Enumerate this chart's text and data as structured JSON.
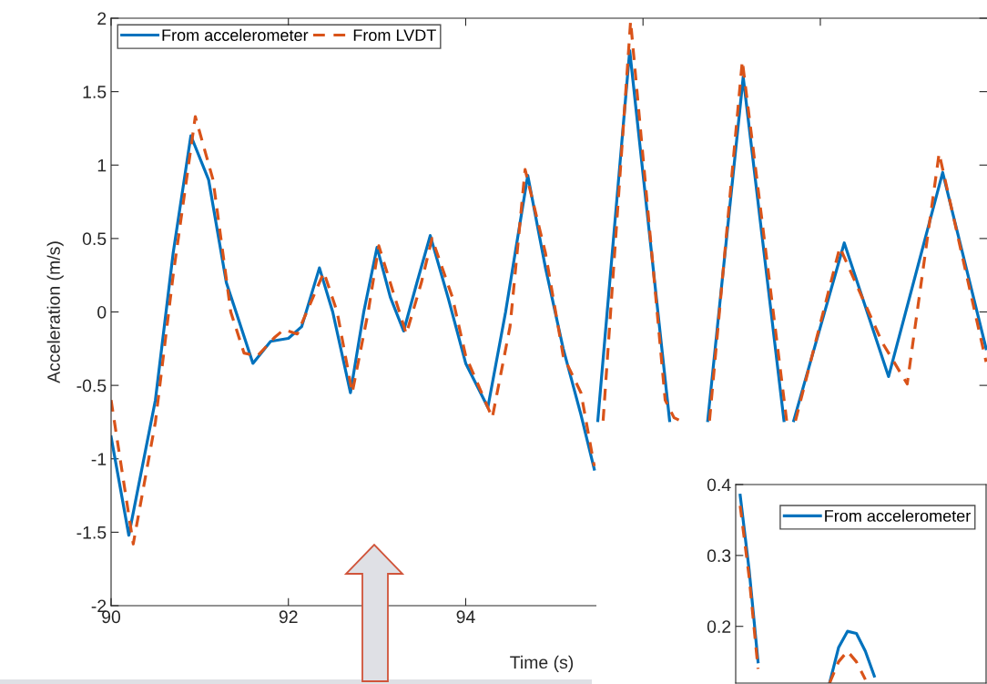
{
  "chart_data": [
    {
      "type": "line",
      "xlabel": "Time (s)",
      "ylabel": "Acceleration (m/s)",
      "xlim": [
        90,
        99.88
      ],
      "xticks": [
        90,
        92,
        94,
        {
          "value": 96,
          "label": null
        },
        {
          "value": 98,
          "label": null
        }
      ],
      "ylim": [
        -2,
        2
      ],
      "yticks": [
        -2,
        -1.5,
        -1,
        -0.5,
        0,
        0.5,
        1,
        1.5,
        2
      ],
      "legend": "top left",
      "grid": false,
      "series": [
        {
          "name": "From accelerometer",
          "color": "#0072bd",
          "line_style": "solid",
          "x": [
            90.0,
            90.2,
            90.5,
            90.7,
            90.9,
            91.1,
            91.3,
            91.6,
            91.8,
            92.0,
            92.15,
            92.35,
            92.5,
            92.7,
            92.85,
            93.0,
            93.15,
            93.3,
            93.45,
            93.6,
            93.8,
            94.0,
            94.25,
            94.45,
            94.7,
            94.9,
            95.1,
            95.3,
            95.45,
            95.47,
            95.49,
            95.85,
            96.3,
            96.5,
            96.73,
            97.13,
            97.59,
            97.65,
            97.7,
            98.27,
            98.77,
            99.38,
            99.87
          ],
          "values": [
            -0.85,
            -1.52,
            -0.6,
            0.4,
            1.2,
            0.9,
            0.2,
            -0.35,
            -0.2,
            -0.18,
            -0.1,
            0.3,
            0.0,
            -0.55,
            0.0,
            0.44,
            0.1,
            -0.13,
            0.2,
            0.52,
            0.1,
            -0.35,
            -0.65,
            0.0,
            0.93,
            0.3,
            -0.25,
            -0.7,
            -1.07,
            null,
            -0.74,
            1.78,
            -0.74,
            null,
            -0.74,
            1.6,
            -0.74,
            null,
            -0.74,
            0.47,
            -0.44,
            0.95,
            -0.25
          ]
        },
        {
          "name": "From LVDT",
          "color": "#d95319",
          "line_style": "dashed",
          "x": [
            90.0,
            90.25,
            90.5,
            90.7,
            90.95,
            91.15,
            91.35,
            91.5,
            91.65,
            91.85,
            91.95,
            92.1,
            92.4,
            92.55,
            92.72,
            92.9,
            93.02,
            93.2,
            93.33,
            93.5,
            93.62,
            93.85,
            94.0,
            94.3,
            94.5,
            94.67,
            94.9,
            95.1,
            95.3,
            95.45,
            95.52,
            95.55,
            95.86,
            96.25,
            96.35,
            96.42,
            96.5,
            96.75,
            97.12,
            97.62,
            97.66,
            97.72,
            98.22,
            98.7,
            98.98,
            99.34,
            99.87
          ],
          "values": [
            -0.6,
            -1.58,
            -0.75,
            0.25,
            1.33,
            0.9,
            0.0,
            -0.28,
            -0.3,
            -0.17,
            -0.12,
            -0.15,
            0.27,
            0.0,
            -0.55,
            0.0,
            0.45,
            0.1,
            -0.15,
            0.2,
            0.5,
            0.1,
            -0.3,
            -0.72,
            -0.1,
            0.97,
            0.4,
            -0.3,
            -0.55,
            -1.05,
            null,
            -0.74,
            1.98,
            -0.6,
            -0.72,
            -0.74,
            null,
            -0.74,
            1.71,
            -0.74,
            null,
            -0.74,
            0.44,
            -0.21,
            -0.49,
            1.08,
            -0.34
          ]
        }
      ]
    },
    {
      "type": "line",
      "categories": [
        null,
        null,
        null,
        null,
        null,
        null,
        null,
        null,
        null,
        null,
        null,
        null,
        null,
        null,
        null,
        null,
        null,
        null,
        null,
        null,
        null,
        null,
        null,
        null,
        null,
        null,
        null,
        null
      ],
      "ylim": [
        0.12,
        0.4
      ],
      "yticks": [
        0.2,
        0.3,
        0.4
      ],
      "legend": "top right",
      "grid": false,
      "series": [
        {
          "name": "From accelerometer",
          "color": "#0072bd",
          "line_style": "solid",
          "values": [
            0.385,
            0.28,
            0.15,
            null,
            null,
            null,
            null,
            null,
            null,
            null,
            0.12,
            0.17,
            0.193,
            0.19,
            0.165,
            0.13,
            null,
            null,
            null,
            null,
            null,
            null,
            null,
            null,
            null,
            null,
            null,
            null
          ]
        },
        {
          "color": "#d95319",
          "line_style": "dashed",
          "values": [
            0.37,
            0.27,
            0.14,
            null,
            null,
            null,
            null,
            null,
            null,
            null,
            0.12,
            0.15,
            0.165,
            0.15,
            0.125,
            null,
            null,
            null,
            null,
            null,
            null,
            null,
            null,
            null,
            null,
            null,
            null,
            null
          ]
        }
      ]
    }
  ]
}
